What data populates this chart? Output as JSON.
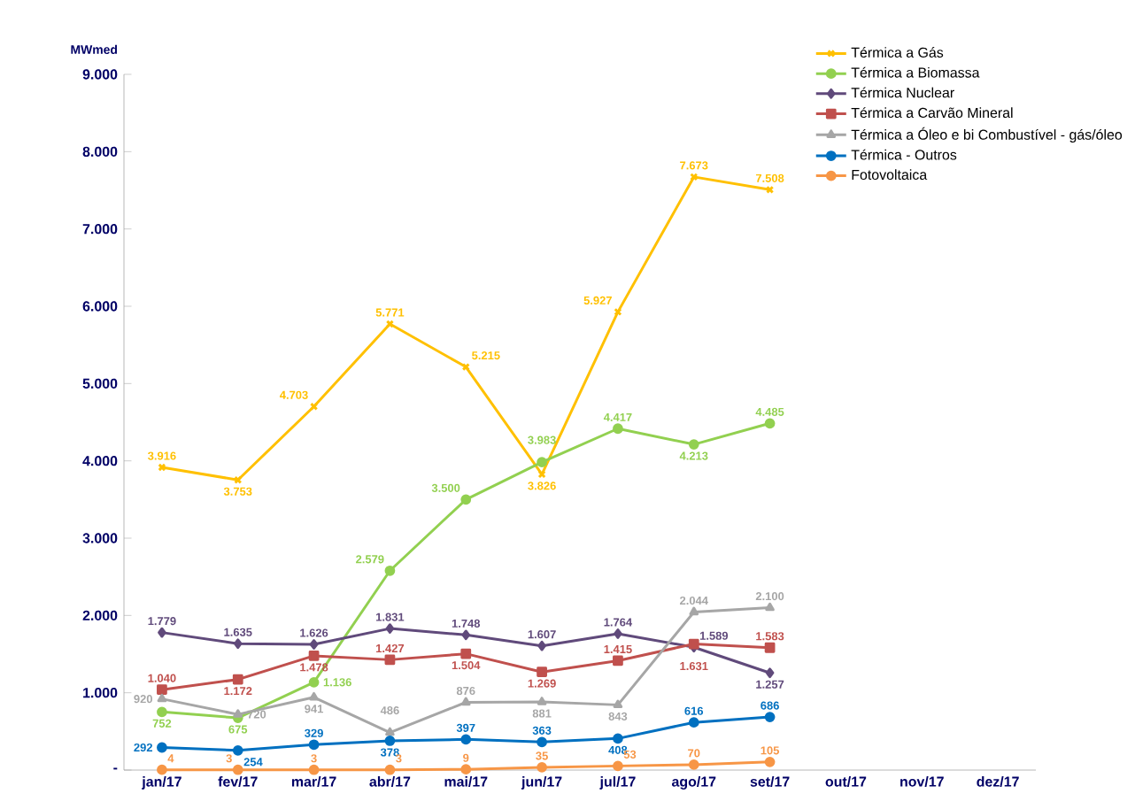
{
  "chart_data": {
    "type": "line",
    "ylabel": "MWmed",
    "categories": [
      "jan/17",
      "fev/17",
      "mar/17",
      "abr/17",
      "mai/17",
      "jun/17",
      "jul/17",
      "ago/17",
      "set/17",
      "out/17",
      "nov/17",
      "dez/17"
    ],
    "ylim": [
      0,
      9000
    ],
    "yticks": [
      {
        "value": 0,
        "label": "-"
      },
      {
        "value": 1000,
        "label": "1.000"
      },
      {
        "value": 2000,
        "label": "2.000"
      },
      {
        "value": 3000,
        "label": "3.000"
      },
      {
        "value": 4000,
        "label": "4.000"
      },
      {
        "value": 5000,
        "label": "5.000"
      },
      {
        "value": 6000,
        "label": "6.000"
      },
      {
        "value": 7000,
        "label": "7.000"
      },
      {
        "value": 8000,
        "label": "8.000"
      },
      {
        "value": 9000,
        "label": "9.000"
      }
    ],
    "legend": "top right",
    "grid": false,
    "line_style": "solid",
    "series": [
      {
        "name": "Térmica a Gás",
        "color": "#ffc000",
        "marker": "cross",
        "values": [
          3916,
          3753,
          4703,
          5771,
          5215,
          3826,
          5927,
          7673,
          7508,
          null,
          null,
          null
        ],
        "value_labels": [
          "3.916",
          "3.753",
          "4.703",
          "5.771",
          "5.215",
          "3.826",
          "5.927",
          "7.673",
          "7.508",
          null,
          null,
          null
        ]
      },
      {
        "name": "Térmica a Biomassa",
        "color": "#92d050",
        "marker": "circle",
        "values": [
          752,
          675,
          1136,
          2579,
          3500,
          3983,
          4417,
          4213,
          4485,
          null,
          null,
          null
        ],
        "value_labels": [
          "752",
          "675",
          "1.136",
          "2.579",
          "3.500",
          "3.983",
          "4.417",
          "4.213",
          "4.485",
          null,
          null,
          null
        ]
      },
      {
        "name": "Térmica Nuclear",
        "color": "#604a7b",
        "marker": "diamond",
        "values": [
          1779,
          1635,
          1626,
          1831,
          1748,
          1607,
          1764,
          1589,
          1257,
          null,
          null,
          null
        ],
        "value_labels": [
          "1.779",
          "1.635",
          "1.626",
          "1.831",
          "1.748",
          "1.607",
          "1.764",
          "1.589",
          "1.257",
          null,
          null,
          null
        ]
      },
      {
        "name": "Térmica a Carvão Mineral",
        "color": "#c0504d",
        "marker": "square",
        "values": [
          1040,
          1172,
          1478,
          1427,
          1504,
          1269,
          1415,
          1631,
          1583,
          null,
          null,
          null
        ],
        "value_labels": [
          "1.040",
          "1.172",
          "1.478",
          "1.427",
          "1.504",
          "1.269",
          "1.415",
          "1.631",
          "1.583",
          null,
          null,
          null
        ]
      },
      {
        "name": "Térmica a Óleo e bi Combustível - gás/óleo",
        "color": "#a6a6a6",
        "marker": "triangle",
        "values": [
          920,
          720,
          941,
          486,
          876,
          881,
          843,
          2044,
          2100,
          null,
          null,
          null
        ],
        "value_labels": [
          "920",
          "720",
          "941",
          "486",
          "876",
          "881",
          "843",
          "2.044",
          "2.100",
          null,
          null,
          null
        ]
      },
      {
        "name": "Térmica - Outros",
        "color": "#0070c0",
        "marker": "circle",
        "values": [
          292,
          254,
          329,
          378,
          397,
          363,
          408,
          616,
          686,
          null,
          null,
          null
        ],
        "value_labels": [
          "292",
          "254",
          "329",
          "378",
          "397",
          "363",
          "408",
          "616",
          "686",
          null,
          null,
          null
        ]
      },
      {
        "name": "Fotovoltaica",
        "color": "#f79646",
        "marker": "circle",
        "values": [
          4,
          3,
          3,
          3,
          9,
          35,
          53,
          70,
          105,
          null,
          null,
          null
        ],
        "value_labels": [
          "4",
          "3",
          "3",
          "3",
          "9",
          "35",
          "53",
          "70",
          "105",
          null,
          null,
          null
        ]
      }
    ]
  }
}
